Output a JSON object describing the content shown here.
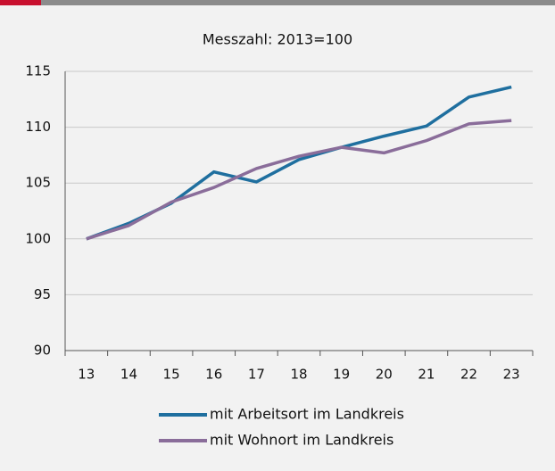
{
  "chart_data": {
    "type": "line",
    "title": "Messzahl: 2013=100",
    "categories": [
      "13",
      "14",
      "15",
      "16",
      "17",
      "18",
      "19",
      "20",
      "21",
      "22",
      "23"
    ],
    "series": [
      {
        "name": "mit Arbeitsort im Landkreis",
        "color": "#1f6f9f",
        "values": [
          100,
          101.4,
          103.2,
          106.0,
          105.1,
          107.1,
          108.2,
          109.2,
          110.1,
          112.7,
          113.6
        ]
      },
      {
        "name": "mit Wohnort im Landkreis",
        "color": "#8a6d9a",
        "values": [
          100,
          101.2,
          103.3,
          104.6,
          106.3,
          107.4,
          108.2,
          107.7,
          108.8,
          110.3,
          110.6
        ]
      }
    ],
    "ylim": [
      90,
      115
    ],
    "yticks": [
      90,
      95,
      100,
      105,
      110,
      115
    ],
    "grid": true
  }
}
